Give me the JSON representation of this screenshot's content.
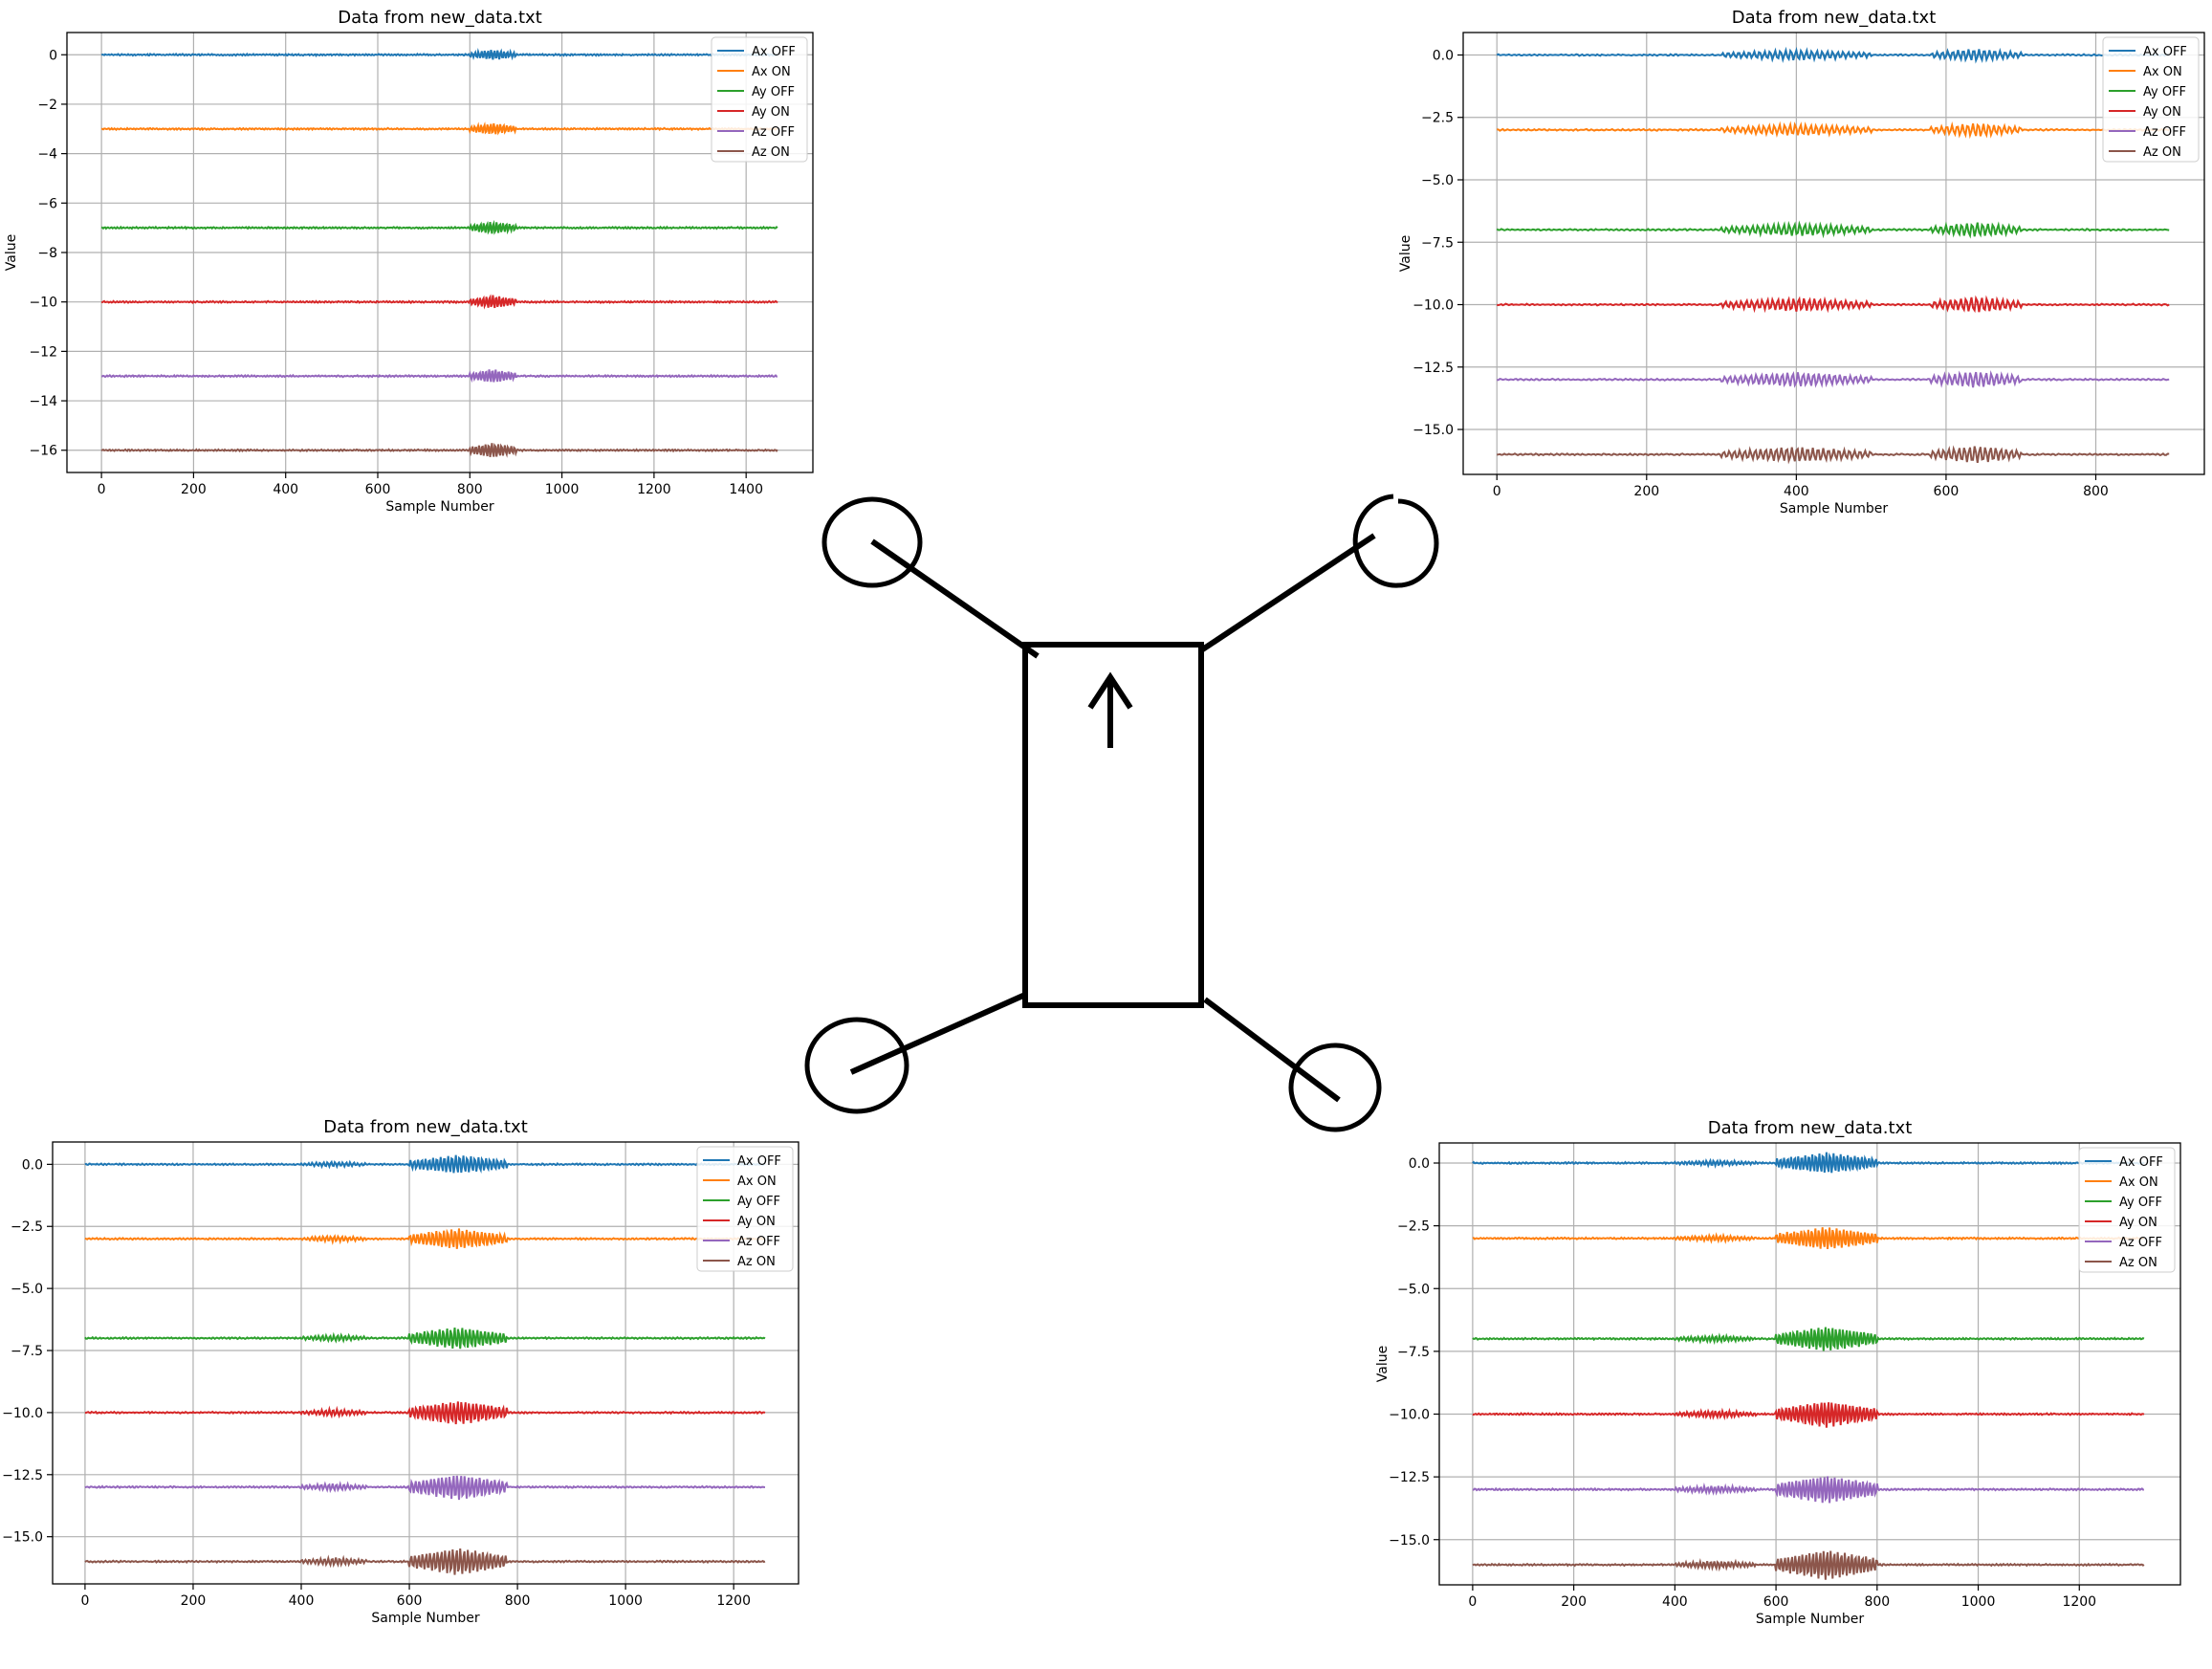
{
  "figure": {
    "drone_sketch": {
      "description_icon": "quadcopter-sketch-icon",
      "arrow_icon": "up-arrow-icon"
    }
  },
  "line_colors": {
    "Ax OFF": "#1f77b4",
    "Ax ON": "#ff7f0e",
    "Ay OFF": "#2ca02c",
    "Ay ON": "#d62728",
    "Az OFF": "#9467bd",
    "Az ON": "#8c564b"
  },
  "chart_data": [
    {
      "id": "top-left",
      "type": "line",
      "title": "Data from new_data.txt",
      "xlabel": "Sample Number",
      "ylabel": "Value",
      "xlim": [
        -75,
        1545
      ],
      "ylim": [
        -16.9,
        0.9
      ],
      "xticks": [
        0,
        200,
        400,
        600,
        800,
        1000,
        1200,
        1400
      ],
      "xtick_labels": [
        "0",
        "200",
        "400",
        "600",
        "800",
        "1000",
        "1200",
        "1400"
      ],
      "yticks": [
        0,
        -2,
        -4,
        -6,
        -8,
        -10,
        -12,
        -14,
        -16
      ],
      "ytick_labels": [
        "0",
        "−2",
        "−4",
        "−6",
        "−8",
        "−10",
        "−12",
        "−14",
        "−16"
      ],
      "grid": true,
      "legend": "top-right",
      "n_samples": 1470,
      "vibration_bursts": [
        [
          800,
          900,
          0.3
        ]
      ],
      "series": [
        {
          "name": "Ax OFF",
          "baseline": 0.0
        },
        {
          "name": "Ax ON",
          "baseline": -3.0
        },
        {
          "name": "Ay OFF",
          "baseline": -7.0
        },
        {
          "name": "Ay ON",
          "baseline": -10.0
        },
        {
          "name": "Az OFF",
          "baseline": -13.0
        },
        {
          "name": "Az ON",
          "baseline": -16.0
        }
      ]
    },
    {
      "id": "top-right",
      "type": "line",
      "title": "Data from new_data.txt",
      "xlabel": "Sample Number",
      "ylabel": "Value",
      "xlim": [
        -45,
        945
      ],
      "ylim": [
        -16.8,
        0.9
      ],
      "xticks": [
        0,
        200,
        400,
        600,
        800
      ],
      "xtick_labels": [
        "0",
        "200",
        "400",
        "600",
        "800"
      ],
      "yticks": [
        0,
        -2.5,
        -5,
        -7.5,
        -10,
        -12.5,
        -15
      ],
      "ytick_labels": [
        "0.0",
        "−2.5",
        "−5.0",
        "−7.5",
        "−10.0",
        "−12.5",
        "−15.0"
      ],
      "grid": true,
      "legend": "top-right",
      "n_samples": 900,
      "vibration_bursts": [
        [
          300,
          500,
          0.3
        ],
        [
          580,
          700,
          0.35
        ]
      ],
      "series": [
        {
          "name": "Ax OFF",
          "baseline": 0.0
        },
        {
          "name": "Ax ON",
          "baseline": -3.0
        },
        {
          "name": "Ay OFF",
          "baseline": -7.0
        },
        {
          "name": "Ay ON",
          "baseline": -10.0
        },
        {
          "name": "Az OFF",
          "baseline": -13.0
        },
        {
          "name": "Az ON",
          "baseline": -16.0
        }
      ]
    },
    {
      "id": "bottom-left",
      "type": "line",
      "title": "Data from new_data.txt",
      "xlabel": "Sample Number",
      "ylabel": "",
      "xlim": [
        -60,
        1320
      ],
      "ylim": [
        -16.9,
        0.9
      ],
      "xticks": [
        0,
        200,
        400,
        600,
        800,
        1000,
        1200
      ],
      "xtick_labels": [
        "0",
        "200",
        "400",
        "600",
        "800",
        "1000",
        "1200"
      ],
      "yticks": [
        0,
        -2.5,
        -5,
        -7.5,
        -10,
        -12.5,
        -15
      ],
      "ytick_labels": [
        "0.0",
        "−2.5",
        "−5.0",
        "−7.5",
        "−10.0",
        "−12.5",
        "−15.0"
      ],
      "grid": true,
      "legend": "top-right",
      "n_samples": 1260,
      "vibration_bursts": [
        [
          400,
          520,
          0.15
        ],
        [
          600,
          780,
          0.55
        ]
      ],
      "series": [
        {
          "name": "Ax OFF",
          "baseline": 0.0
        },
        {
          "name": "Ax ON",
          "baseline": -3.0
        },
        {
          "name": "Ay OFF",
          "baseline": -7.0
        },
        {
          "name": "Ay ON",
          "baseline": -10.0
        },
        {
          "name": "Az OFF",
          "baseline": -13.0
        },
        {
          "name": "Az ON",
          "baseline": -16.0
        }
      ]
    },
    {
      "id": "bottom-right",
      "type": "line",
      "title": "Data from new_data.txt",
      "xlabel": "Sample Number",
      "ylabel": "Value",
      "xlim": [
        -66,
        1400
      ],
      "ylim": [
        -16.8,
        0.8
      ],
      "xticks": [
        0,
        200,
        400,
        600,
        800,
        1000,
        1200
      ],
      "xtick_labels": [
        "0",
        "200",
        "400",
        "600",
        "800",
        "1000",
        "1200"
      ],
      "yticks": [
        0,
        -2.5,
        -5,
        -7.5,
        -10,
        -12.5,
        -15
      ],
      "ytick_labels": [
        "0.0",
        "−2.5",
        "−5.0",
        "−7.5",
        "−10.0",
        "−12.5",
        "−15.0"
      ],
      "grid": true,
      "legend": "top-right",
      "n_samples": 1330,
      "vibration_bursts": [
        [
          400,
          560,
          0.15
        ],
        [
          600,
          800,
          0.6
        ]
      ],
      "series": [
        {
          "name": "Ax OFF",
          "baseline": 0.0
        },
        {
          "name": "Ax ON",
          "baseline": -3.0
        },
        {
          "name": "Ay OFF",
          "baseline": -7.0
        },
        {
          "name": "Ay ON",
          "baseline": -10.0
        },
        {
          "name": "Az OFF",
          "baseline": -13.0
        },
        {
          "name": "Az ON",
          "baseline": -16.0
        }
      ]
    }
  ]
}
